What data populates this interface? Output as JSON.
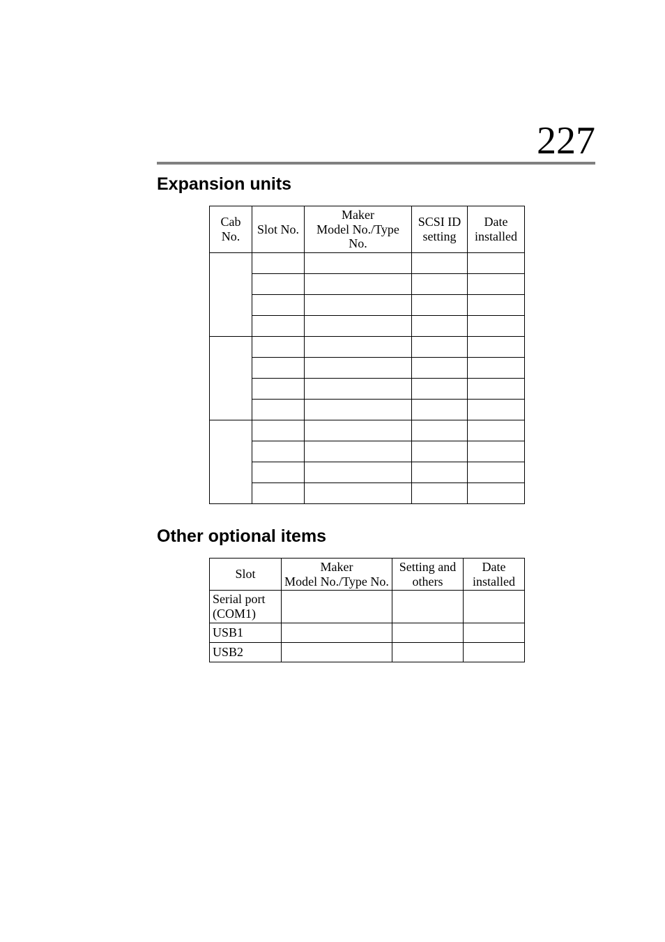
{
  "page_number": "227",
  "section1": {
    "heading": "Expansion units",
    "table": {
      "columns": [
        "Cab No.",
        "Slot No.",
        "Maker\nModel No./Type No.",
        "SCSI ID setting",
        "Date installed"
      ],
      "group_count": 3,
      "rows_per_group": 4
    }
  },
  "section2": {
    "heading": "Other optional items",
    "table": {
      "columns": [
        "Slot",
        "Maker\nModel No./Type No.",
        "Setting and others",
        "Date installed"
      ],
      "rows": [
        "Serial port (COM1)",
        "USB1",
        "USB2"
      ]
    }
  },
  "style": {
    "page_bg": "#ffffff",
    "text_color": "#000000",
    "rule_color": "#808080",
    "heading_font": "Arial",
    "heading_size_pt": 19,
    "body_font": "Times New Roman",
    "body_size_pt": 13,
    "page_number_size_pt": 42
  }
}
